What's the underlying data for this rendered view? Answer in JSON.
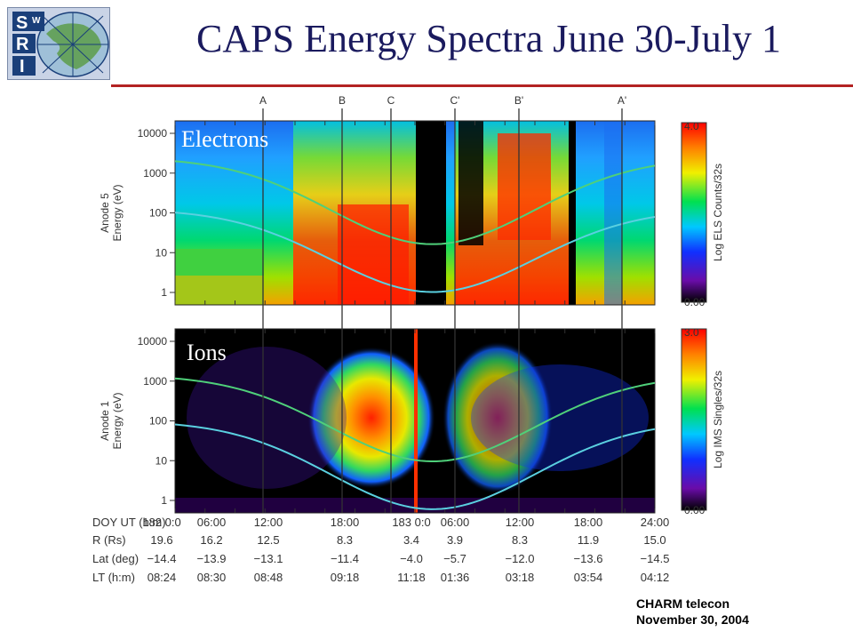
{
  "title": "CAPS Energy Spectra June 30-July 1",
  "logo": {
    "letters": [
      "S",
      "W",
      "R",
      "I"
    ]
  },
  "footer": {
    "line1": "CHARM telecon",
    "line2": "November 30, 2004"
  },
  "colors": {
    "title": "#1a1a5e",
    "rule": "#b32222",
    "green_curve": "#4fd07a",
    "cyan_curve": "#5ad0e0"
  },
  "chart_data": [
    {
      "type": "heatmap",
      "panel_label": "Electrons",
      "ylabel": "Anode 5\nEnergy (eV)",
      "yscale": "log",
      "ylim": [
        1,
        10000
      ],
      "yticks": [
        "10000",
        "1000",
        "100",
        "10",
        "1"
      ],
      "colorbar": {
        "label": "Log ELS Counts/32s",
        "max": "4.0",
        "min": "0.00"
      },
      "boundary_markers": [
        "A",
        "B",
        "C",
        "C'",
        "B'",
        "A'"
      ]
    },
    {
      "type": "heatmap",
      "panel_label": "Ions",
      "ylabel": "Anode 1\nEnergy (eV)",
      "yscale": "log",
      "ylim": [
        1,
        10000
      ],
      "yticks": [
        "10000",
        "1000",
        "100",
        "10",
        "1"
      ],
      "colorbar": {
        "label": "Log IMS Singles/32s",
        "max": "3.0",
        "min": "0.00"
      }
    }
  ],
  "ephemeris": {
    "rows": [
      {
        "label": "DOY UT (h:m)",
        "values": [
          "182 0:0",
          "06:00",
          "12:00",
          "18:00",
          "183 0:0",
          "06:00",
          "12:00",
          "18:00",
          "24:00"
        ]
      },
      {
        "label": "R (Rs)",
        "values": [
          "19.6",
          "16.2",
          "12.5",
          "8.3",
          "3.4",
          "3.9",
          "8.3",
          "11.9",
          "15.0"
        ]
      },
      {
        "label": "Lat (deg)",
        "values": [
          "−14.4",
          "−13.9",
          "−13.1",
          "−11.4",
          "−4.0",
          "−5.7",
          "−12.0",
          "−13.6",
          "−14.5"
        ]
      },
      {
        "label": "LT (h:m)",
        "values": [
          "08:24",
          "08:30",
          "08:48",
          "09:18",
          "11:18",
          "01:36",
          "03:18",
          "03:54",
          "04:12"
        ]
      }
    ]
  }
}
